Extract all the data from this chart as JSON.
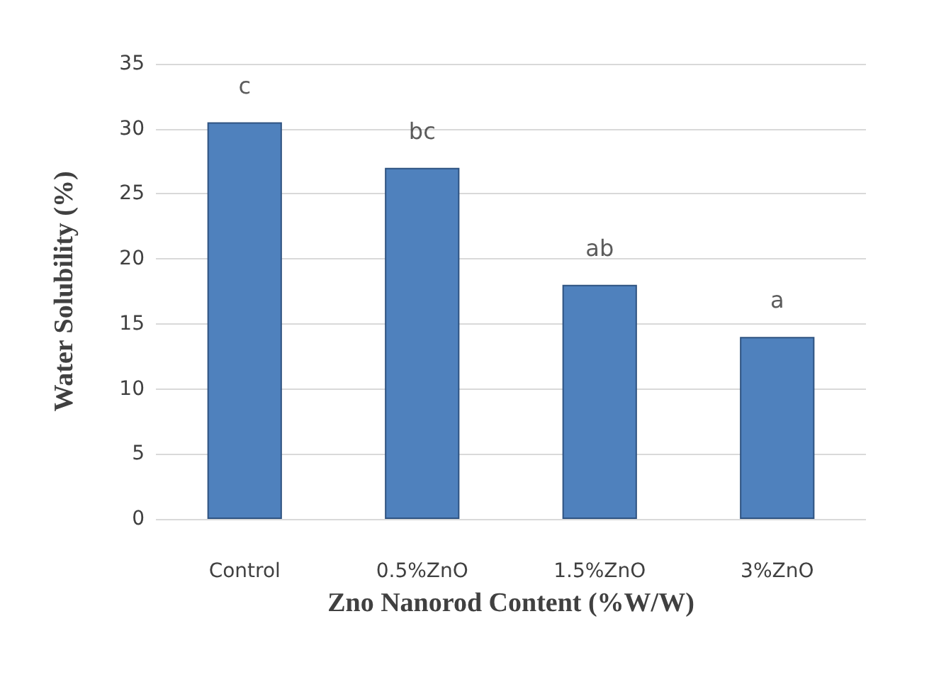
{
  "chart_data": {
    "type": "bar",
    "xlabel": "Zno Nanorod Content (%W/W)",
    "ylabel": "Water Solubility (%)",
    "categories": [
      "Control",
      "0.5%ZnO",
      "1.5%ZnO",
      "3%ZnO"
    ],
    "values": [
      30.5,
      27,
      18,
      14
    ],
    "color": "#4f81bd",
    "ylim": [
      0,
      35
    ],
    "yticks": [
      0,
      5,
      10,
      15,
      20,
      25,
      30,
      35
    ],
    "grid": "y",
    "annotations": [
      {
        "text": "c",
        "x": "Control",
        "y": 30.5
      },
      {
        "text": "bc",
        "x": "0.5%ZnO",
        "y": 27
      },
      {
        "text": "ab",
        "x": "1.5%ZnO",
        "y": 18
      },
      {
        "text": "a",
        "x": "3%ZnO",
        "y": 14
      }
    ]
  }
}
